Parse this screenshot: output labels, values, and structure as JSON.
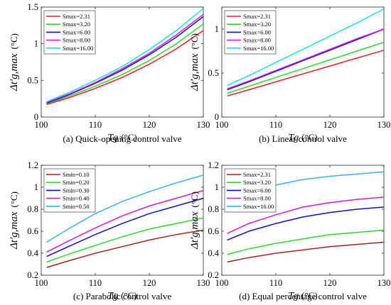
{
  "colors": {
    "red": "#ee1c25",
    "green": "#33d633",
    "blue": "#0f0fc8",
    "magenta": "#d01cd8",
    "cyan": "#20dde0",
    "brown": "#a3261c",
    "lightblue": "#3fb0e8"
  },
  "chart_data": [
    {
      "type": "line",
      "caption": "(a) Quick-opening control valve",
      "xlabel": "Tg",
      "xlabel_unit": "(°C)",
      "ylabel": "Δt′g,max",
      "ylabel_unit": "(°C)",
      "xlim": [
        100,
        130
      ],
      "ylim": [
        0,
        1.5
      ],
      "xticks": [
        "100",
        "110",
        "120",
        "130"
      ],
      "yticks": [
        "0",
        "0.5",
        "1",
        "1.5"
      ],
      "legend_position": "top-left",
      "grid": false,
      "x": [
        101,
        105,
        110,
        115,
        120,
        125,
        130
      ],
      "series": [
        {
          "name": "Smax=2.31",
          "color": "#ee1c25",
          "values": [
            0.17,
            0.26,
            0.39,
            0.54,
            0.72,
            0.93,
            1.18
          ]
        },
        {
          "name": "Smax=3.20",
          "color": "#33d633",
          "values": [
            0.18,
            0.28,
            0.42,
            0.58,
            0.77,
            1.0,
            1.27
          ]
        },
        {
          "name": "Smax=6.00",
          "color": "#0f0fc8",
          "values": [
            0.19,
            0.3,
            0.46,
            0.64,
            0.85,
            1.09,
            1.37
          ]
        },
        {
          "name": "Smax=8.00",
          "color": "#d01cd8",
          "values": [
            0.2,
            0.31,
            0.47,
            0.66,
            0.87,
            1.12,
            1.4
          ]
        },
        {
          "name": "Smax=16.00",
          "color": "#20dde0",
          "values": [
            0.21,
            0.33,
            0.5,
            0.69,
            0.92,
            1.18,
            1.48
          ]
        }
      ]
    },
    {
      "type": "line",
      "caption": "(b) Linear control valve",
      "xlabel": "Tg",
      "xlabel_unit": "(°C)",
      "ylabel": "Δt′g,max",
      "ylabel_unit": "(°C)",
      "xlim": [
        100,
        130
      ],
      "ylim": [
        0,
        1.25
      ],
      "xticks": [
        "100",
        "110",
        "120",
        "130"
      ],
      "yticks": [
        "0",
        "0.5",
        "1"
      ],
      "legend_position": "top-left",
      "grid": false,
      "x": [
        101,
        105,
        110,
        115,
        120,
        125,
        130
      ],
      "series": [
        {
          "name": "Smax=2.31",
          "color": "#ee1c25",
          "values": [
            0.24,
            0.31,
            0.4,
            0.49,
            0.58,
            0.67,
            0.76
          ]
        },
        {
          "name": "Smax=3.20",
          "color": "#33d633",
          "values": [
            0.27,
            0.35,
            0.45,
            0.55,
            0.65,
            0.75,
            0.85
          ]
        },
        {
          "name": "Smax=6.00",
          "color": "#0f0fc8",
          "values": [
            0.31,
            0.4,
            0.52,
            0.64,
            0.76,
            0.88,
            1.0
          ]
        },
        {
          "name": "Smax=8.00",
          "color": "#d01cd8",
          "values": [
            0.32,
            0.41,
            0.53,
            0.65,
            0.77,
            0.89,
            1.0
          ]
        },
        {
          "name": "Smax=16.00",
          "color": "#20dde0",
          "values": [
            0.36,
            0.47,
            0.62,
            0.77,
            0.92,
            1.07,
            1.23
          ]
        }
      ]
    },
    {
      "type": "line",
      "caption": "(c) Parabolic control valve",
      "xlabel": "Tg",
      "xlabel_unit": "(°C)",
      "ylabel": "Δt′g,max",
      "ylabel_unit": "(°C)",
      "xlim": [
        100,
        130
      ],
      "ylim": [
        0.2,
        1.2
      ],
      "xticks": [
        "100",
        "110",
        "120",
        "130"
      ],
      "yticks": [
        "0.2",
        "0.4",
        "0.6",
        "0.8",
        "1",
        "1.2"
      ],
      "legend_position": "top-left",
      "grid": false,
      "x": [
        101,
        105,
        110,
        115,
        120,
        125,
        130
      ],
      "series": [
        {
          "name": "Smin=0.10",
          "color": "#a3261c",
          "values": [
            0.27,
            0.33,
            0.4,
            0.46,
            0.52,
            0.57,
            0.61
          ]
        },
        {
          "name": "Smin=0.20",
          "color": "#33d633",
          "values": [
            0.32,
            0.39,
            0.47,
            0.55,
            0.62,
            0.67,
            0.72
          ]
        },
        {
          "name": "Smin=0.30",
          "color": "#0f0fc8",
          "values": [
            0.37,
            0.46,
            0.57,
            0.67,
            0.76,
            0.83,
            0.9
          ]
        },
        {
          "name": "Smin=0.40",
          "color": "#d01cd8",
          "values": [
            0.41,
            0.51,
            0.63,
            0.74,
            0.83,
            0.9,
            0.97
          ]
        },
        {
          "name": "Smin=0.50",
          "color": "#3fb0e8",
          "values": [
            0.5,
            0.62,
            0.76,
            0.87,
            0.96,
            1.04,
            1.11
          ]
        }
      ]
    },
    {
      "type": "line",
      "caption": "(d) Equal percentage control valve",
      "xlabel": "Tg",
      "xlabel_unit": "(°C)",
      "ylabel": "Δt′g,max",
      "ylabel_unit": "(°C)",
      "xlim": [
        100,
        130
      ],
      "ylim": [
        0.2,
        1.2
      ],
      "xticks": [
        "100",
        "110",
        "120",
        "130"
      ],
      "yticks": [
        "0.2",
        "0.4",
        "0.6",
        "0.8",
        "1",
        "1.2"
      ],
      "legend_position": "top-left",
      "grid": false,
      "x": [
        101,
        105,
        110,
        115,
        120,
        125,
        130
      ],
      "series": [
        {
          "name": "Smax=2.31",
          "color": "#a3261c",
          "values": [
            0.32,
            0.36,
            0.4,
            0.43,
            0.46,
            0.48,
            0.5
          ]
        },
        {
          "name": "Smax=3.20",
          "color": "#33d633",
          "values": [
            0.39,
            0.44,
            0.49,
            0.53,
            0.57,
            0.59,
            0.61
          ]
        },
        {
          "name": "Smax=6.00",
          "color": "#0f0fc8",
          "values": [
            0.52,
            0.6,
            0.67,
            0.73,
            0.77,
            0.8,
            0.82
          ]
        },
        {
          "name": "Smax=8.00",
          "color": "#d01cd8",
          "values": [
            0.58,
            0.67,
            0.75,
            0.82,
            0.86,
            0.89,
            0.91
          ]
        },
        {
          "name": "Smax=16.00",
          "color": "#3fb0e8",
          "values": [
            0.84,
            0.94,
            1.02,
            1.07,
            1.1,
            1.12,
            1.14
          ]
        }
      ]
    }
  ]
}
